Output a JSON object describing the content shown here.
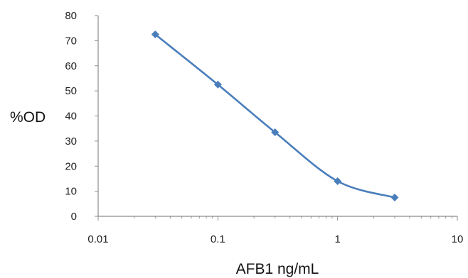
{
  "chart_data": {
    "type": "line",
    "title": "",
    "xlabel": "AFB1 ng/mL",
    "ylabel": "%OD",
    "x_scale": "log",
    "xlim": [
      0.01,
      10
    ],
    "ylim": [
      0,
      80
    ],
    "x_ticks": [
      "0.01",
      "0.1",
      "1",
      "10"
    ],
    "y_ticks": [
      "0",
      "10",
      "20",
      "30",
      "40",
      "50",
      "60",
      "70",
      "80"
    ],
    "grid": false,
    "legend": "none",
    "smooth": true,
    "marker": "diamond",
    "color": "#4a7ebb",
    "series": [
      {
        "x": [
          0.03,
          0.1,
          0.3,
          1,
          3
        ],
        "y": [
          72.5,
          52.5,
          33.5,
          14,
          7.5
        ]
      }
    ]
  }
}
